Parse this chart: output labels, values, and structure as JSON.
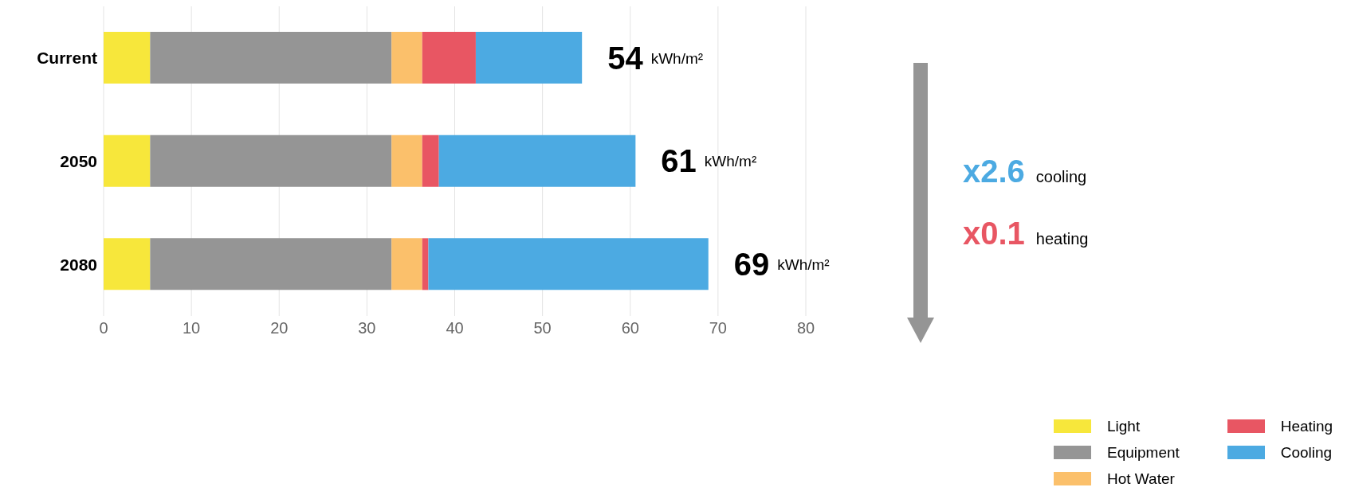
{
  "chart_data": {
    "type": "bar",
    "orientation": "horizontal",
    "stacked": true,
    "categories": [
      "Current",
      "2050",
      "2080"
    ],
    "series": [
      {
        "name": "Light",
        "color": "#f7e73b",
        "values": [
          5.3,
          5.3,
          5.3
        ]
      },
      {
        "name": "Equipment",
        "color": "#959595",
        "values": [
          27.5,
          27.5,
          27.5
        ]
      },
      {
        "name": "Hot Water",
        "color": "#fbc06b",
        "values": [
          3.5,
          3.5,
          3.5
        ]
      },
      {
        "name": "Heating",
        "color": "#e85663",
        "values": [
          6.1,
          1.9,
          0.7
        ]
      },
      {
        "name": "Cooling",
        "color": "#4caae2",
        "values": [
          12.1,
          22.4,
          31.9
        ]
      }
    ],
    "xlim": [
      0,
      80
    ],
    "xticks": [
      0,
      10,
      20,
      30,
      40,
      50,
      60,
      70,
      80
    ],
    "grid": "x",
    "legend": "bottom right",
    "totals": [
      "54 kWh/m²",
      "61 kWh/m²",
      "69 kWh/m²"
    ],
    "annotations": [
      "x2.6 cooling",
      "x0.1 heating"
    ]
  }
}
